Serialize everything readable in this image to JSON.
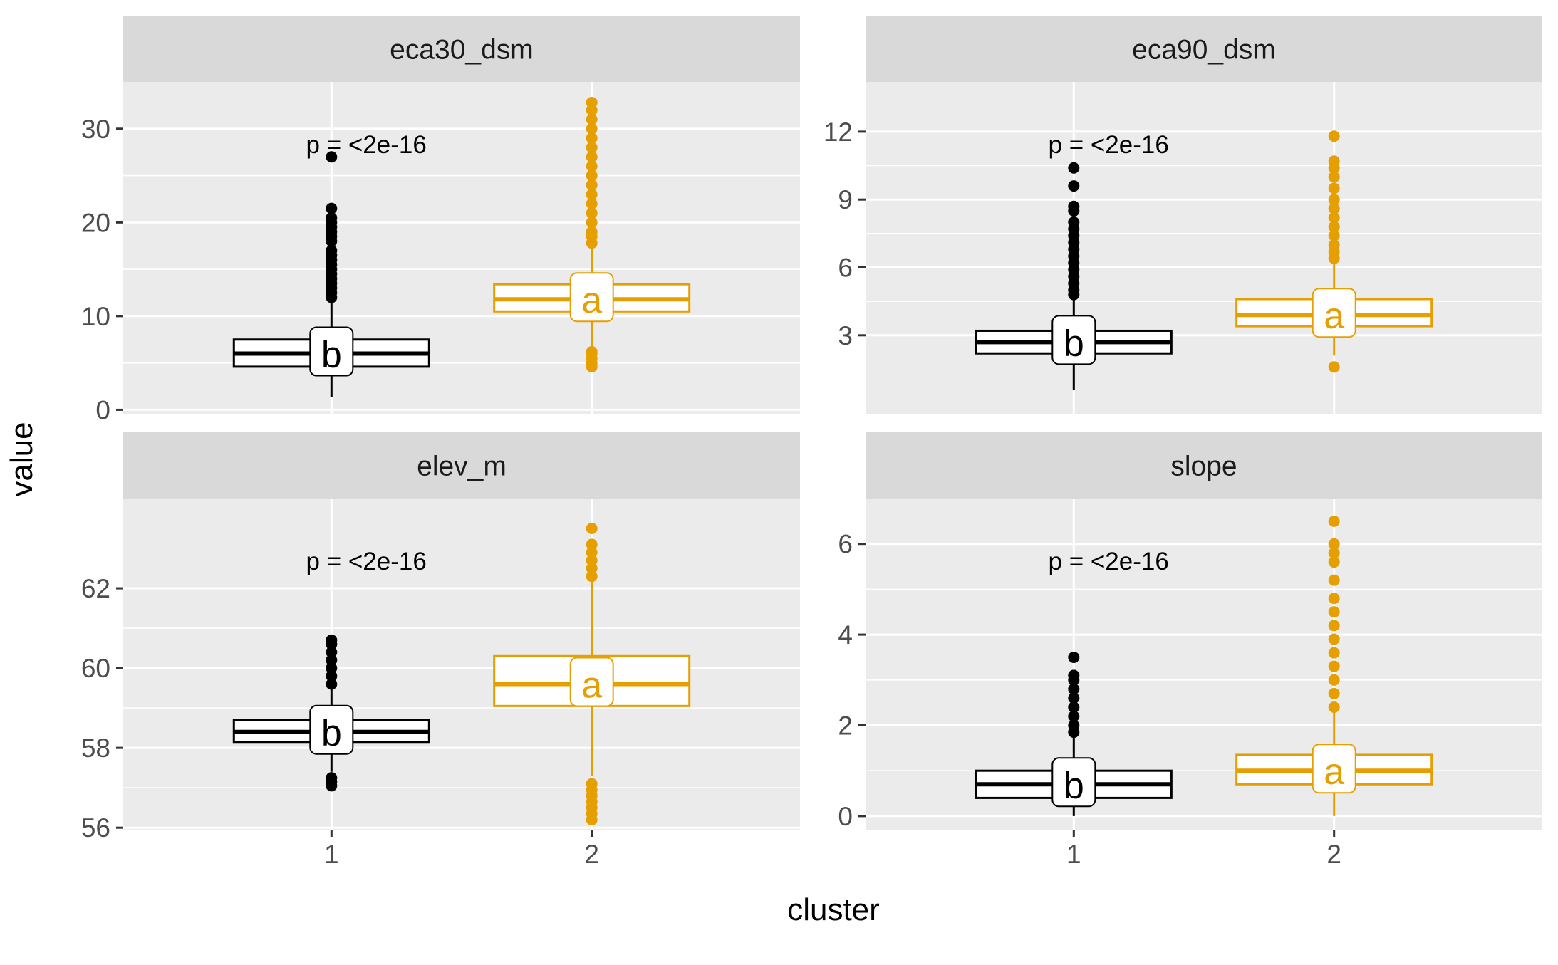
{
  "chart_data": {
    "type": "boxplot",
    "layout": "facet_wrap 2x2",
    "xlabel": "cluster",
    "ylabel": "value",
    "categories": [
      "1",
      "2"
    ],
    "colors": {
      "1": "#000000",
      "2": "#E69F00",
      "panel_bg": "#EBEBEB",
      "strip_bg": "#D9D9D9",
      "grid": "#FFFFFF"
    },
    "panels": [
      {
        "title": "eca30_dsm",
        "pvalue": "p = <2e-16",
        "ylim": [
          -0.5,
          35
        ],
        "yticks": [
          0,
          10,
          20,
          30
        ],
        "yticklabels": [
          "0",
          "10",
          "20",
          "30"
        ],
        "boxes": [
          {
            "cluster": "1",
            "letter": "b",
            "whisker_low": 1.4,
            "q1": 4.6,
            "median": 6.0,
            "q3": 7.5,
            "whisker_high": 11.8,
            "outliers": [
              12.0,
              12.5,
              13.0,
              13.5,
              14.0,
              14.5,
              15.0,
              15.5,
              16.0,
              16.5,
              17.0,
              18.0,
              18.5,
              19.0,
              19.5,
              20.0,
              20.5,
              21.5,
              27.0
            ]
          },
          {
            "cluster": "2",
            "letter": "a",
            "whisker_low": 6.5,
            "q1": 10.5,
            "median": 11.8,
            "q3": 13.4,
            "whisker_high": 17.6,
            "outliers": [
              4.6,
              5.0,
              5.5,
              6.0,
              6.2,
              17.8,
              18.5,
              19.0,
              20.0,
              21.0,
              22.0,
              23.0,
              24.0,
              25.0,
              26.0,
              27.0,
              28.0,
              29.0,
              30.0,
              31.0,
              32.0,
              32.8
            ]
          }
        ]
      },
      {
        "title": "eca90_dsm",
        "pvalue": "p = <2e-16",
        "ylim": [
          -0.5,
          14.2
        ],
        "yticks": [
          3,
          6,
          9,
          12
        ],
        "yticklabels": [
          "3",
          "6",
          "9",
          "12"
        ],
        "boxes": [
          {
            "cluster": "1",
            "letter": "b",
            "whisker_low": 0.6,
            "q1": 2.2,
            "median": 2.7,
            "q3": 3.2,
            "whisker_high": 4.7,
            "outliers": [
              4.8,
              5.0,
              5.3,
              5.6,
              5.9,
              6.2,
              6.5,
              6.8,
              7.1,
              7.4,
              7.7,
              8.0,
              8.5,
              8.7,
              9.6,
              10.4
            ]
          },
          {
            "cluster": "2",
            "letter": "a",
            "whisker_low": 2.1,
            "q1": 3.4,
            "median": 3.9,
            "q3": 4.6,
            "whisker_high": 6.3,
            "outliers": [
              1.6,
              6.4,
              6.7,
              7.0,
              7.4,
              7.8,
              8.2,
              8.6,
              9.0,
              9.5,
              10.0,
              10.4,
              10.7,
              11.8
            ]
          }
        ]
      },
      {
        "title": "elev_m",
        "pvalue": "p = <2e-16",
        "ylim": [
          55.95,
          64.25
        ],
        "yticks": [
          56,
          58,
          60,
          62
        ],
        "yticklabels": [
          "56",
          "58",
          "60",
          "62"
        ],
        "boxes": [
          {
            "cluster": "1",
            "letter": "b",
            "whisker_low": 57.4,
            "q1": 58.15,
            "median": 58.4,
            "q3": 58.7,
            "whisker_high": 59.5,
            "outliers": [
              57.05,
              57.15,
              57.25,
              59.6,
              59.8,
              60.0,
              60.2,
              60.4,
              60.6,
              60.7
            ]
          },
          {
            "cluster": "2",
            "letter": "a",
            "whisker_low": 57.3,
            "q1": 59.05,
            "median": 59.6,
            "q3": 60.3,
            "whisker_high": 62.2,
            "outliers": [
              56.2,
              56.35,
              56.5,
              56.65,
              56.8,
              56.95,
              57.1,
              62.3,
              62.5,
              62.7,
              62.9,
              63.1,
              63.5
            ]
          }
        ]
      },
      {
        "title": "slope",
        "pvalue": "p = <2e-16",
        "ylim": [
          -0.3,
          7.0
        ],
        "yticks": [
          0,
          2,
          4,
          6
        ],
        "yticklabels": [
          "0",
          "2",
          "4",
          "6"
        ],
        "boxes": [
          {
            "cluster": "1",
            "letter": "b",
            "whisker_low": 0.0,
            "q1": 0.4,
            "median": 0.7,
            "q3": 1.0,
            "whisker_high": 1.8,
            "outliers": [
              1.85,
              2.0,
              2.2,
              2.4,
              2.6,
              2.8,
              3.0,
              3.1,
              3.5
            ]
          },
          {
            "cluster": "2",
            "letter": "a",
            "whisker_low": 0.0,
            "q1": 0.7,
            "median": 1.0,
            "q3": 1.35,
            "whisker_high": 2.3,
            "outliers": [
              2.4,
              2.7,
              3.0,
              3.3,
              3.6,
              3.9,
              4.2,
              4.5,
              4.8,
              5.2,
              5.6,
              5.8,
              6.0,
              6.5
            ]
          }
        ]
      }
    ]
  }
}
